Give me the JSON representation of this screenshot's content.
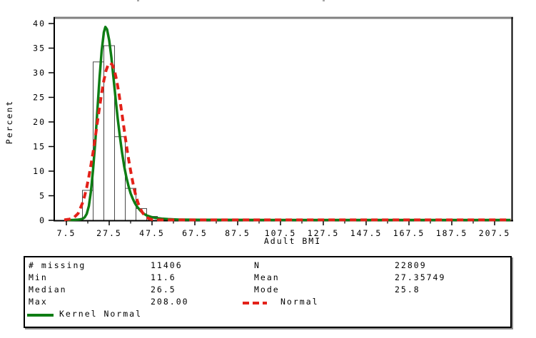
{
  "chart_data": {
    "type": "histogram",
    "title": "",
    "xlabel": "Adult BMI",
    "ylabel": "Percent",
    "xlim": [
      1.5,
      215.5
    ],
    "ylim": [
      0,
      40
    ],
    "y_ticks": [
      0,
      5,
      10,
      15,
      20,
      25,
      30,
      35,
      40
    ],
    "x_ticks_major": [
      7.5,
      27.5,
      47.5,
      67.5,
      87.5,
      107.5,
      127.5,
      147.5,
      167.5,
      187.5,
      207.5
    ],
    "x_ticks_minor": [
      17.5,
      37.5,
      57.5,
      77.5,
      97.5,
      117.5,
      137.5,
      157.5,
      177.5,
      197.5
    ],
    "grid": false,
    "legend_position": "bottom-table",
    "colors": {
      "kernel": "#0e7d14",
      "normal": "#e32119",
      "frame_top": "#808080",
      "axis": "#000000",
      "bar_fill": "#ffffff",
      "bar_stroke": "#4a4a4a"
    },
    "bars": {
      "bin_width": 5,
      "midpoints": [
        17.5,
        22.5,
        27.5,
        32.5,
        37.5,
        42.5,
        47.5
      ],
      "percents": [
        6.1,
        32.2,
        35.5,
        17.0,
        6.5,
        2.4,
        0.8
      ]
    },
    "series": [
      {
        "name": "Kernel Normal",
        "style": "solid",
        "color": "#0e7d14",
        "points": [
          [
            8,
            0.05
          ],
          [
            11,
            0.08
          ],
          [
            13,
            0.15
          ],
          [
            14,
            0.2
          ],
          [
            15,
            0.3
          ],
          [
            16,
            0.6
          ],
          [
            17,
            1.3
          ],
          [
            18,
            2.9
          ],
          [
            19,
            6
          ],
          [
            20,
            10.5
          ],
          [
            21,
            16
          ],
          [
            22,
            22.5
          ],
          [
            23,
            29
          ],
          [
            24,
            34.5
          ],
          [
            25,
            38.2
          ],
          [
            25.7,
            39.3
          ],
          [
            26.5,
            38.8
          ],
          [
            27.5,
            36.6
          ],
          [
            28.5,
            33.2
          ],
          [
            29.5,
            29
          ],
          [
            30.5,
            24.7
          ],
          [
            31.5,
            20.6
          ],
          [
            32.5,
            17
          ],
          [
            33.5,
            13.8
          ],
          [
            34.5,
            11
          ],
          [
            35.5,
            8.8
          ],
          [
            36.5,
            7
          ],
          [
            37.5,
            5.5
          ],
          [
            38.5,
            4.4
          ],
          [
            39.5,
            3.5
          ],
          [
            40.5,
            2.8
          ],
          [
            42,
            2
          ],
          [
            43.5,
            1.4
          ],
          [
            45,
            1
          ],
          [
            47,
            0.7
          ],
          [
            49,
            0.5
          ],
          [
            52,
            0.35
          ],
          [
            55,
            0.25
          ],
          [
            60,
            0.15
          ],
          [
            70,
            0.1
          ],
          [
            90,
            0.08
          ],
          [
            120,
            0.07
          ],
          [
            160,
            0.07
          ],
          [
            215,
            0.07
          ]
        ]
      },
      {
        "name": "Normal",
        "style": "dashed",
        "color": "#e32119",
        "points": [
          [
            6.5,
            0.1
          ],
          [
            9,
            0.25
          ],
          [
            11,
            0.55
          ],
          [
            13,
            1.4
          ],
          [
            15,
            3.5
          ],
          [
            16,
            4.9
          ],
          [
            17,
            6.7
          ],
          [
            18,
            8.9
          ],
          [
            19,
            11.3
          ],
          [
            20,
            13.9
          ],
          [
            21,
            16.9
          ],
          [
            22,
            20
          ],
          [
            23,
            23
          ],
          [
            24,
            25.9
          ],
          [
            25,
            28.4
          ],
          [
            26,
            30.4
          ],
          [
            27,
            31.6
          ],
          [
            28,
            32
          ],
          [
            29,
            31.6
          ],
          [
            30,
            30.4
          ],
          [
            31,
            28.4
          ],
          [
            32,
            25.9
          ],
          [
            33,
            23
          ],
          [
            34,
            20
          ],
          [
            35,
            16.9
          ],
          [
            36,
            13.9
          ],
          [
            37,
            11.3
          ],
          [
            38,
            8.9
          ],
          [
            39,
            6.7
          ],
          [
            40,
            4.9
          ],
          [
            41,
            3.5
          ],
          [
            42,
            2.4
          ],
          [
            43,
            1.6
          ],
          [
            44,
            1.0
          ],
          [
            45,
            0.63
          ],
          [
            46,
            0.38
          ],
          [
            47,
            0.22
          ],
          [
            48,
            0.13
          ],
          [
            50,
            0.1
          ],
          [
            55,
            0.08
          ],
          [
            215,
            0.08
          ]
        ]
      }
    ]
  },
  "stats_table": {
    "left_rows": [
      {
        "label": "# missing",
        "value": "11406"
      },
      {
        "label": "Min",
        "value": "11.6"
      },
      {
        "label": "Median",
        "value": "26.5"
      },
      {
        "label": "Max",
        "value": "208.00"
      }
    ],
    "right_rows": [
      {
        "label": "N",
        "value": "22809"
      },
      {
        "label": "Mean",
        "value": "27.35749"
      },
      {
        "label": "Mode",
        "value": "25.8"
      }
    ]
  }
}
